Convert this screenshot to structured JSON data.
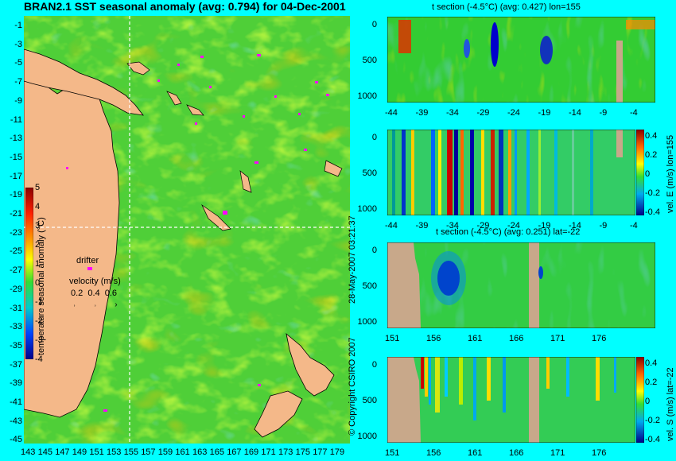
{
  "map": {
    "title": "BRAN2.1 SST seasonal anomaly (avg: 0.794) for 04-Dec-2001",
    "lat_ticks": [
      "-1",
      "-3",
      "-5",
      "-7",
      "-9",
      "-11",
      "-13",
      "-15",
      "-17",
      "-19",
      "-21",
      "-23",
      "-25",
      "-27",
      "-29",
      "-31",
      "-33",
      "-35",
      "-37",
      "-39",
      "-41",
      "-43",
      "-45"
    ],
    "lon_ticks": [
      "143",
      "145",
      "147",
      "149",
      "151",
      "153",
      "155",
      "157",
      "159",
      "161",
      "163",
      "165",
      "167",
      "169",
      "171",
      "173",
      "175",
      "177",
      "179"
    ],
    "colorbar": {
      "label": "temperature seasonal anomaly (°C)",
      "ticks": [
        "5",
        "4",
        "3",
        "2",
        "1",
        "0",
        "-1",
        "-2",
        "-3",
        "-4"
      ]
    },
    "drifter_label": "drifter",
    "velocity": {
      "label": "velocity (m/s)",
      "values": [
        "0.2",
        "0.4",
        "0.6"
      ]
    },
    "section_lines": {
      "lon": "155",
      "lat": "-22"
    },
    "colors": {
      "land": "#f4b889",
      "background": "#00ffff",
      "drifter": "#ff00ff",
      "section_line": "#ffffff"
    }
  },
  "panels": [
    {
      "title": "t section (-4.5°C) (avg: 0.427) lon=155",
      "y_ticks": [
        "0",
        "500",
        "1000"
      ],
      "x_ticks": [
        "-44",
        "-39",
        "-34",
        "-29",
        "-24",
        "-19",
        "-14",
        "-9",
        "-4"
      ],
      "colorbar_label": ""
    },
    {
      "title": "",
      "y_ticks": [
        "0",
        "500",
        "1000"
      ],
      "x_ticks": [
        "-44",
        "-39",
        "-34",
        "-29",
        "-24",
        "-19",
        "-14",
        "-9",
        "-4"
      ],
      "colorbar_label": "vel. E (m/s) lon=155",
      "cb_ticks": [
        "0.4",
        "0.2",
        "0",
        "-0.2",
        "-0.4"
      ]
    },
    {
      "title": "t section (-4.5°C) (avg: 0.251) lat=-22",
      "y_ticks": [
        "0",
        "500",
        "1000"
      ],
      "x_ticks": [
        "151",
        "156",
        "161",
        "166",
        "171",
        "176"
      ],
      "colorbar_label": ""
    },
    {
      "title": "",
      "y_ticks": [
        "0",
        "500",
        "1000"
      ],
      "x_ticks": [
        "151",
        "156",
        "161",
        "166",
        "171",
        "176"
      ],
      "colorbar_label": "vel. S (m/s) lat=-22",
      "cb_ticks": [
        "0.4",
        "0.2",
        "0",
        "-0.2",
        "-0.4"
      ]
    }
  ],
  "credit": {
    "timestamp": "28-May-2007 03:21:37",
    "copyright": "© Copyright CSIRO 2007"
  }
}
